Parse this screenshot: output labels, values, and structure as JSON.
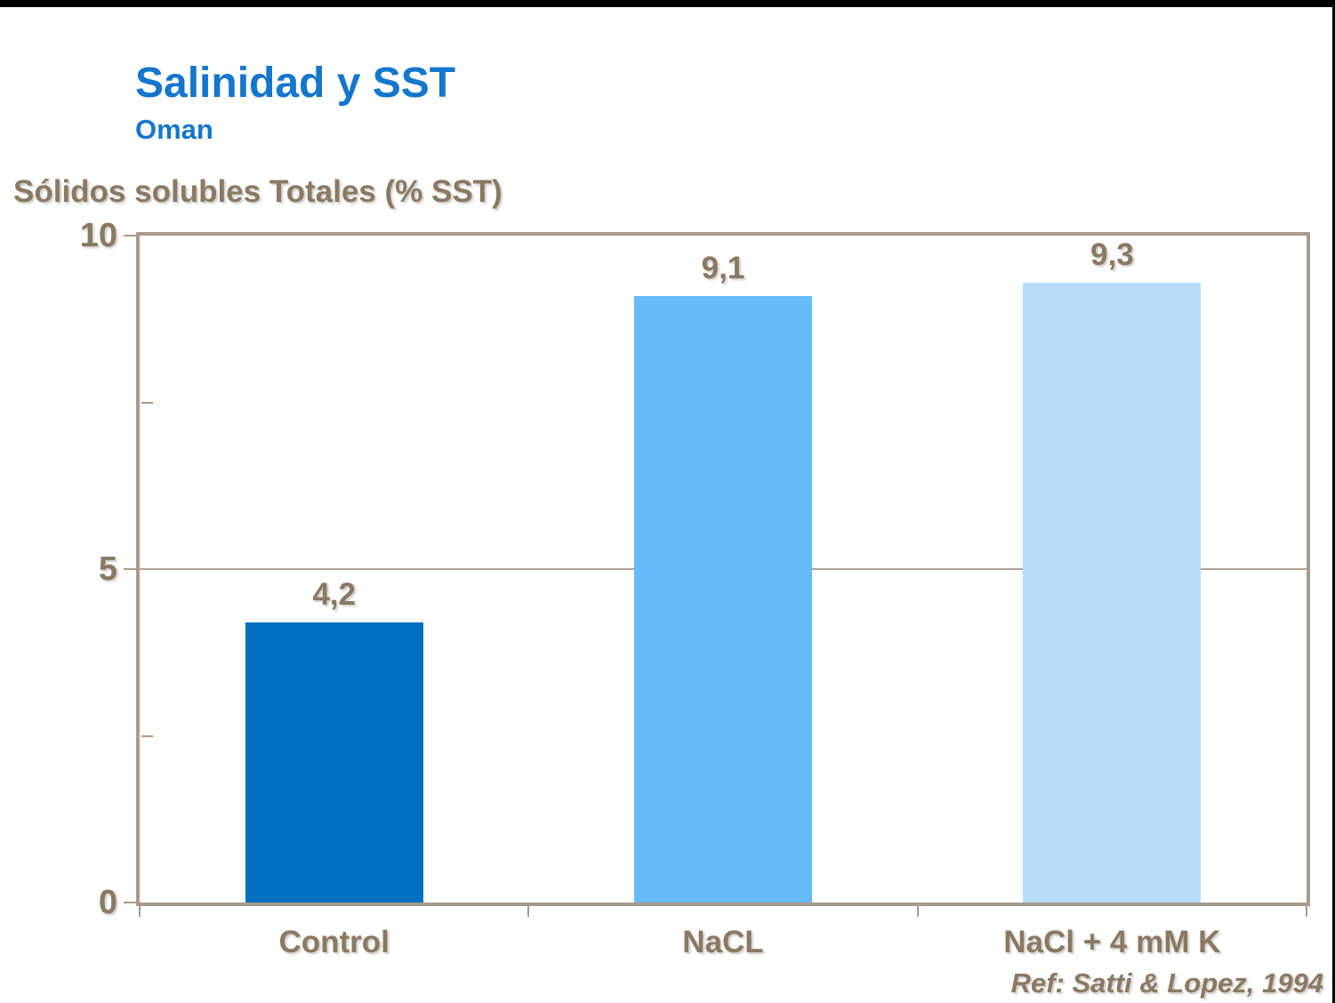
{
  "page": {
    "title": "Salinidad y SST",
    "subtitle": "Oman",
    "reference": "Ref: Satti & Lopez, 1994"
  },
  "chart_data": {
    "type": "bar",
    "title": "Salinidad y SST",
    "subtitle": "Oman",
    "ylabel": "Sólidos solubles Totales (% SST)",
    "xlabel": "",
    "categories": [
      "Control",
      "NaCL",
      "NaCl + 4 mM K"
    ],
    "values": [
      4.2,
      9.1,
      9.3
    ],
    "value_labels": [
      "4,2",
      "9,1",
      "9,3"
    ],
    "bar_colors": [
      "#0070C0",
      "#66BBFA",
      "#B8DDFA"
    ],
    "ylim": [
      0,
      10
    ],
    "yticks": [
      0,
      5,
      10
    ],
    "ytick_labels": [
      "0",
      "5",
      "10"
    ],
    "minor_yticks": [
      2.5,
      7.5
    ],
    "grid": "horizontal major gridlines only",
    "legend": "none",
    "annotation": "Ref: Satti & Lopez, 1994"
  },
  "colors": {
    "title_blue": "#1476CC",
    "label_brown": "#8a7963",
    "frame_tan": "#a89a8c",
    "bar_control": "#0070C0",
    "bar_nacl": "#66BBFA",
    "bar_nacl_k": "#B8DDFA",
    "top_bar_black": "#000000"
  }
}
